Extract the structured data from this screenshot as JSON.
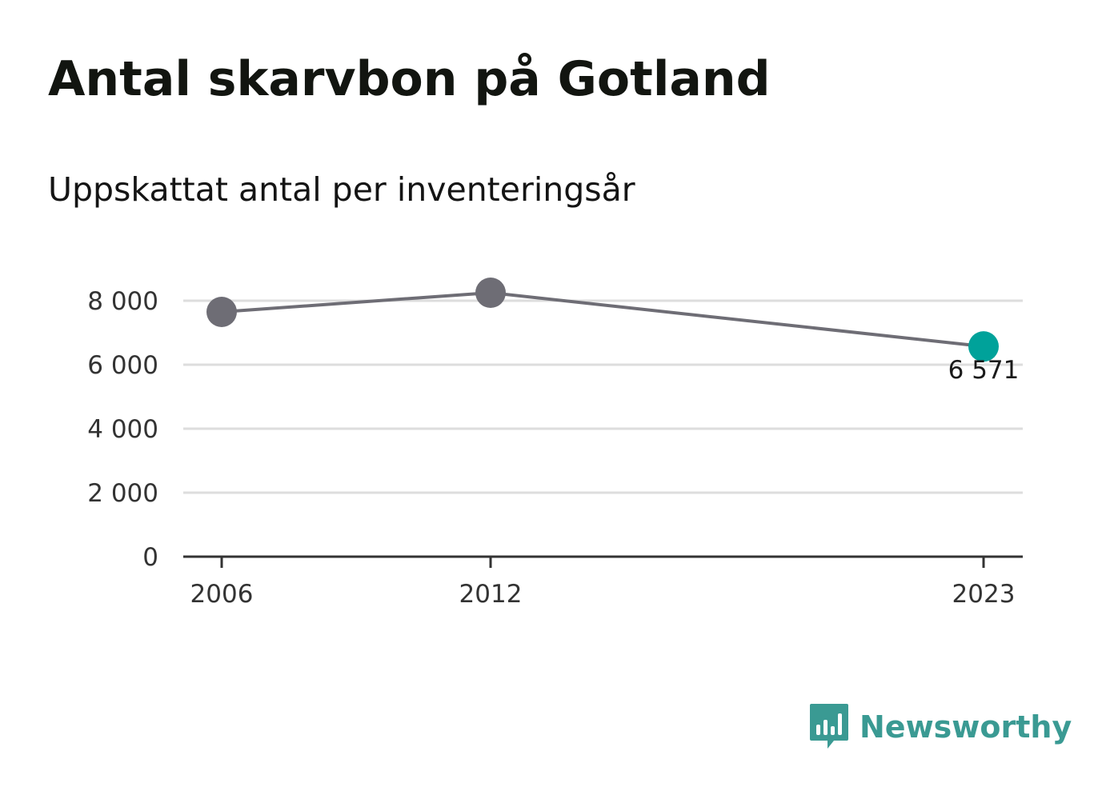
{
  "title": "Antal skarvbon på Gotland",
  "subtitle": "Uppskattat antal per inventeringsår",
  "brand": {
    "name": "Newsworthy",
    "icon": "newsworthy-logo-icon",
    "color": "#3a9a93"
  },
  "colors": {
    "line": "#6e6d75",
    "point": "#6e6d75",
    "highlight": "#00a29a",
    "grid": "#dddddd",
    "axis": "#333333"
  },
  "chart_data": {
    "type": "line",
    "x": [
      "2006",
      "2012",
      "2023"
    ],
    "series": [
      {
        "values": [
          7650,
          8250,
          6571
        ]
      }
    ],
    "x_numeric": [
      2006,
      2012,
      2023
    ],
    "ylim": [
      0,
      8000
    ],
    "yticks": [
      0,
      2000,
      4000,
      6000,
      8000
    ],
    "ytick_labels": [
      "0",
      "2 000",
      "4 000",
      "6 000",
      "8 000"
    ],
    "xtick_labels": [
      "2006",
      "2012",
      "2023"
    ],
    "annotations": [
      {
        "x": "2023",
        "text": "6 571"
      }
    ],
    "highlighted_point": "2023",
    "grid": true,
    "legend": "none"
  }
}
